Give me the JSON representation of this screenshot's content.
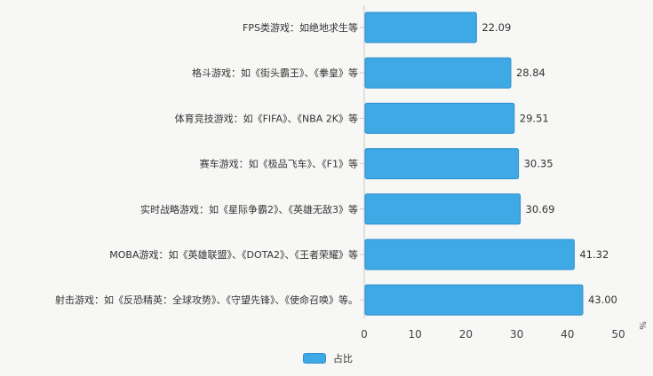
{
  "chart_data": {
    "type": "bar",
    "orientation": "horizontal",
    "categories": [
      "FPS类游戏：如绝地求生等",
      "格斗游戏：如《街头霸王》、《拳皇》等",
      "体育竞技游戏：如《FIFA》、《NBA 2K》等",
      "赛车游戏：如《极品飞车》、《F1》等",
      "实时战略游戏：如《星际争霸2》、《英雄无敌3》等",
      "MOBA游戏：如《英雄联盟》、《DOTA2》、《王者荣耀》等",
      "射击游戏：如《反恐精英：全球攻势》、《守望先锋》、《使命召唤》等。"
    ],
    "series": [
      {
        "name": "占比",
        "values": [
          22.09,
          28.84,
          29.51,
          30.35,
          30.69,
          41.32,
          43.0
        ],
        "labels": [
          "22.09",
          "28.84",
          "29.51",
          "30.35",
          "30.69",
          "41.32",
          "43.00"
        ]
      }
    ],
    "x_ticks": [
      "0",
      "10",
      "20",
      "30",
      "40",
      "50"
    ],
    "xlim": [
      0,
      50
    ],
    "x_unit": "%",
    "legend_position": "bottom",
    "grid": false,
    "bar_color": "#3fa9e6",
    "bar_border_color": "#2e8fcc"
  }
}
